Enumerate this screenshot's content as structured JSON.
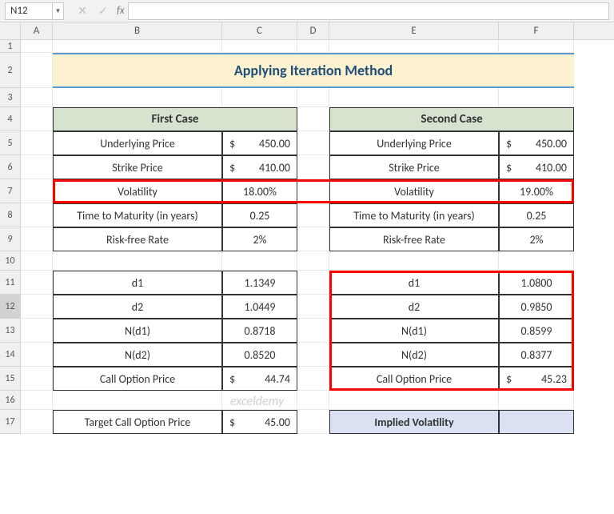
{
  "namebox": "N12",
  "colwidths": {
    "A": 40,
    "B": 212,
    "C": 94,
    "D": 40,
    "E": 212,
    "F": 94
  },
  "rowheights": {
    "1": 16,
    "2": 44,
    "3": 24,
    "4": 30,
    "5": 30,
    "6": 30,
    "7": 30,
    "8": 30,
    "9": 30,
    "10": 24,
    "11": 30,
    "12": 30,
    "13": 30,
    "14": 30,
    "15": 30,
    "16": 24,
    "17": 30
  },
  "title": "Applying Iteration Method",
  "case1": {
    "header": "First Case",
    "rows": [
      {
        "label": "Underlying Price",
        "val": "450.00",
        "cur": "$",
        "type": "money"
      },
      {
        "label": "Strike Price",
        "val": "410.00",
        "cur": "$",
        "type": "money"
      },
      {
        "label": "Volatility",
        "val": "18.00%",
        "type": "pct"
      },
      {
        "label": "Time to Maturity (in years)",
        "val": "0.25",
        "type": "num"
      },
      {
        "label": "Risk-free Rate",
        "val": "2%",
        "type": "pct"
      }
    ],
    "calc": [
      {
        "label": "d1",
        "val": "1.1349"
      },
      {
        "label": "d2",
        "val": "1.0449"
      },
      {
        "label": "N(d1)",
        "val": "0.8718"
      },
      {
        "label": "N(d2)",
        "val": "0.8520"
      },
      {
        "label": "Call Option Price",
        "val": "44.74",
        "cur": "$",
        "type": "money"
      }
    ]
  },
  "case2": {
    "header": "Second Case",
    "rows": [
      {
        "label": "Underlying Price",
        "val": "450.00",
        "cur": "$",
        "type": "money"
      },
      {
        "label": "Strike Price",
        "val": "410.00",
        "cur": "$",
        "type": "money"
      },
      {
        "label": "Volatility",
        "val": "19.00%",
        "type": "pct"
      },
      {
        "label": "Time to Maturity (in years)",
        "val": "0.25",
        "type": "num"
      },
      {
        "label": "Risk-free Rate",
        "val": "2%",
        "type": "pct"
      }
    ],
    "calc": [
      {
        "label": "d1",
        "val": "1.0800"
      },
      {
        "label": "d2",
        "val": "0.9850"
      },
      {
        "label": "N(d1)",
        "val": "0.8599"
      },
      {
        "label": "N(d2)",
        "val": "0.8377"
      },
      {
        "label": "Call Option Price",
        "val": "45.23",
        "cur": "$",
        "type": "money"
      }
    ]
  },
  "target": {
    "label": "Target Call Option Price",
    "val": "45.00",
    "cur": "$"
  },
  "implied": {
    "label": "Implied Volatility"
  },
  "watermark": "exceldemy"
}
